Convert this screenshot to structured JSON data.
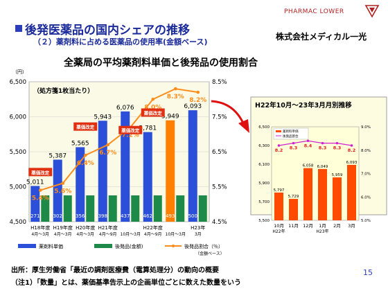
{
  "header": {
    "title": "後発医薬品の国内シェアの推移",
    "subtitle": "（２）薬剤料に占める医薬品の使用率(金額ベース)",
    "logo_text": "PHARMAC LOWER",
    "company": "株式会社メディカル一光"
  },
  "main_heading": "全薬局の平均薬剤料単価と後発品の使用割合",
  "footer": {
    "source": "出所：厚生労働省「最近の調剤医療費（電算処理分）の動向の概要",
    "note": "（注1）「数量」とは、薬価基準告示上の企画単位ごとに数えた数量をいう",
    "page_number": "15"
  },
  "chart_data": [
    {
      "type": "bar",
      "y_unit_label": "（円）",
      "annotation": "（処方箋1枚当たり）",
      "categories": [
        {
          "l1": "H18年度",
          "l2": "4月～3月"
        },
        {
          "l1": "H19年度",
          "l2": "4月～3月"
        },
        {
          "l1": "H20年度",
          "l2": "4月～3月"
        },
        {
          "l1": "H21年度",
          "l2": "4月～9月"
        },
        {
          "l1": "",
          "l2": "10月～3月"
        },
        {
          "l1": "H22年度",
          "l2": "4月～9月"
        },
        {
          "l1": "",
          "l2": "10月～3月"
        },
        {
          "l1": "H23年",
          "l2": "3月"
        }
      ],
      "left_axis": {
        "min": 4500,
        "max": 6500,
        "ticks": [
          "4,500",
          "5,000",
          "5,500",
          "6,000",
          "6,500"
        ],
        "tick_values": [
          4500,
          5000,
          5500,
          6000,
          6500
        ]
      },
      "right_axis": {
        "min": 4.5,
        "max": 8.5,
        "ticks": [
          "4.5%",
          "5.5%",
          "6.5%",
          "7.5%",
          "8.5%"
        ],
        "tick_values": [
          4.5,
          5.5,
          6.5,
          7.5,
          8.5
        ]
      },
      "unit_price": {
        "name": "薬剤料単価",
        "values": [
          5011,
          5387,
          5565,
          5943,
          6076,
          5781,
          5949,
          6093
        ],
        "labels": [
          "5,011",
          "5,387",
          "5,565",
          "5,943",
          "6,076",
          "5,781",
          "5,949",
          "6,093"
        ],
        "color": "#2b4fd8",
        "highlight_index": 6,
        "highlight_color": "#ff8000"
      },
      "generic_amount": {
        "name": "後発品(金額)",
        "values": [
          271,
          302,
          356,
          398,
          437,
          462,
          493,
          500
        ],
        "labels": [
          "271",
          "302",
          "356",
          "398",
          "437",
          "462",
          "493",
          "500"
        ],
        "color": "#1e8a4a"
      },
      "usage_rate": {
        "name": "後発品割合（％）",
        "name_note": "（金額ベース）",
        "values": [
          5.4,
          5.6,
          6.4,
          6.7,
          7.2,
          8.0,
          8.3,
          8.2
        ],
        "labels": [
          "5.4%",
          "5.6%",
          "6.4%",
          "6.7%",
          "7.2%",
          "8.0%",
          "8.3%",
          "8.2%"
        ],
        "color": "#ff8c1a"
      },
      "revision_labels": [
        {
          "text": "薬価改定",
          "index": 0
        },
        {
          "text": "薬価改定",
          "index": 2
        },
        {
          "text": "薬価改定",
          "index": 4
        },
        {
          "text": "薬価改定",
          "index": 5
        }
      ],
      "revision_color": "#e03010"
    },
    {
      "type": "bar",
      "title": "H22年10月～23年3月月別推移",
      "categories": [
        {
          "l1": "10月",
          "l2": "H22年"
        },
        {
          "l1": "11月",
          "l2": ""
        },
        {
          "l1": "12月",
          "l2": ""
        },
        {
          "l1": "1月",
          "l2": "H23年"
        },
        {
          "l1": "2月",
          "l2": ""
        },
        {
          "l1": "3月",
          "l2": ""
        }
      ],
      "left_axis": {
        "min": 5500,
        "max": 6500,
        "ticks": [
          "5,500",
          "5,700",
          "5,900",
          "6,100",
          "6,300",
          "6,500"
        ],
        "tick_values": [
          5500,
          5700,
          5900,
          6100,
          6300,
          6500
        ]
      },
      "right_axis": {
        "min": 5.0,
        "max": 9.0,
        "ticks": [
          "5.0%",
          "6.0%",
          "7.0%",
          "8.0%",
          "9.0%"
        ],
        "tick_values": [
          5.0,
          6.0,
          7.0,
          8.0,
          9.0
        ]
      },
      "unit_price": {
        "name": "薬剤料単価",
        "values": [
          5797,
          5729,
          6058,
          6049,
          5959,
          6093
        ],
        "labels": [
          "5,797",
          "5,729",
          "6,058",
          "6,049",
          "5,959",
          "6,093"
        ],
        "color": "#ff4a00"
      },
      "usage_rate": {
        "name": "後発品割合",
        "values": [
          8.2,
          8.3,
          8.4,
          8.3,
          8.3,
          8.2
        ],
        "labels": [
          "8.2",
          "8.3",
          "8.4",
          "8.3",
          "8.3",
          "8.2"
        ],
        "color": "#d020d0"
      }
    }
  ]
}
